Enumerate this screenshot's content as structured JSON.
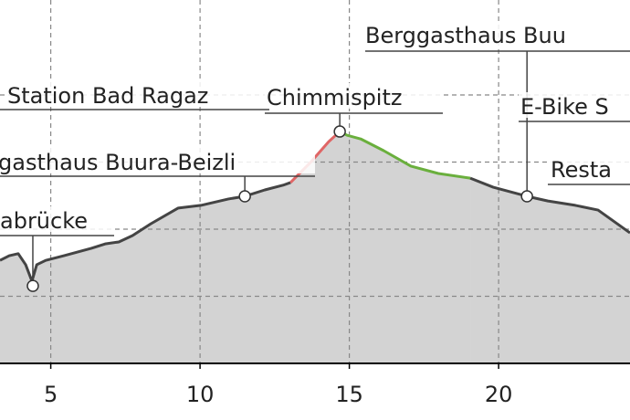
{
  "chart_data": {
    "type": "area",
    "xlim": [
      3.3,
      24.4
    ],
    "ylim": [
      400,
      1483
    ],
    "xticks": [
      5,
      10,
      15,
      20
    ],
    "ygrid": [
      600,
      800,
      1000,
      1200
    ],
    "grid": true,
    "fill_color": "#d3d3d3",
    "series": [
      {
        "color": "#444444",
        "x": [
          3.3,
          3.61,
          3.91,
          4.16,
          4.37,
          4.53,
          4.83,
          5.44,
          6.36,
          6.82,
          7.28,
          7.74,
          8.35,
          9.27,
          10.03,
          10.95,
          11.5,
          12.17,
          12.78,
          13.03
        ],
        "values": [
          707,
          721,
          727,
          694,
          645,
          694,
          707,
          721,
          743,
          756,
          762,
          781,
          816,
          863,
          871,
          890,
          898,
          917,
          931,
          939
        ]
      },
      {
        "color": "#e06666",
        "x": [
          13.03,
          13.7,
          14.31,
          14.68
        ],
        "values": [
          939,
          999,
          1061,
          1091
        ]
      },
      {
        "color": "#6aaf3d",
        "x": [
          14.68,
          14.92,
          15.38,
          16.15,
          17.06,
          17.98,
          19.05
        ],
        "values": [
          1091,
          1080,
          1069,
          1034,
          988,
          966,
          952
        ]
      },
      {
        "color": "#444444",
        "x": [
          19.05,
          19.82,
          20.95,
          21.65,
          22.57,
          23.33,
          24.4
        ],
        "values": [
          952,
          925,
          898,
          884,
          871,
          857,
          789
        ]
      }
    ],
    "annotations": [
      {
        "text": "Station Bad Ragaz"
      },
      {
        "text": "gasthaus Buura-Beizli",
        "x": 11.5,
        "y": 898
      },
      {
        "text": "abrücke",
        "x": 4.4,
        "y": 631
      },
      {
        "text": "Chimmispitz",
        "x": 14.68,
        "y": 1091
      },
      {
        "text": "Berggasthaus Buu",
        "x": 20.95,
        "y": 898
      },
      {
        "text": "E-Bike S"
      },
      {
        "text": "Resta"
      }
    ]
  }
}
